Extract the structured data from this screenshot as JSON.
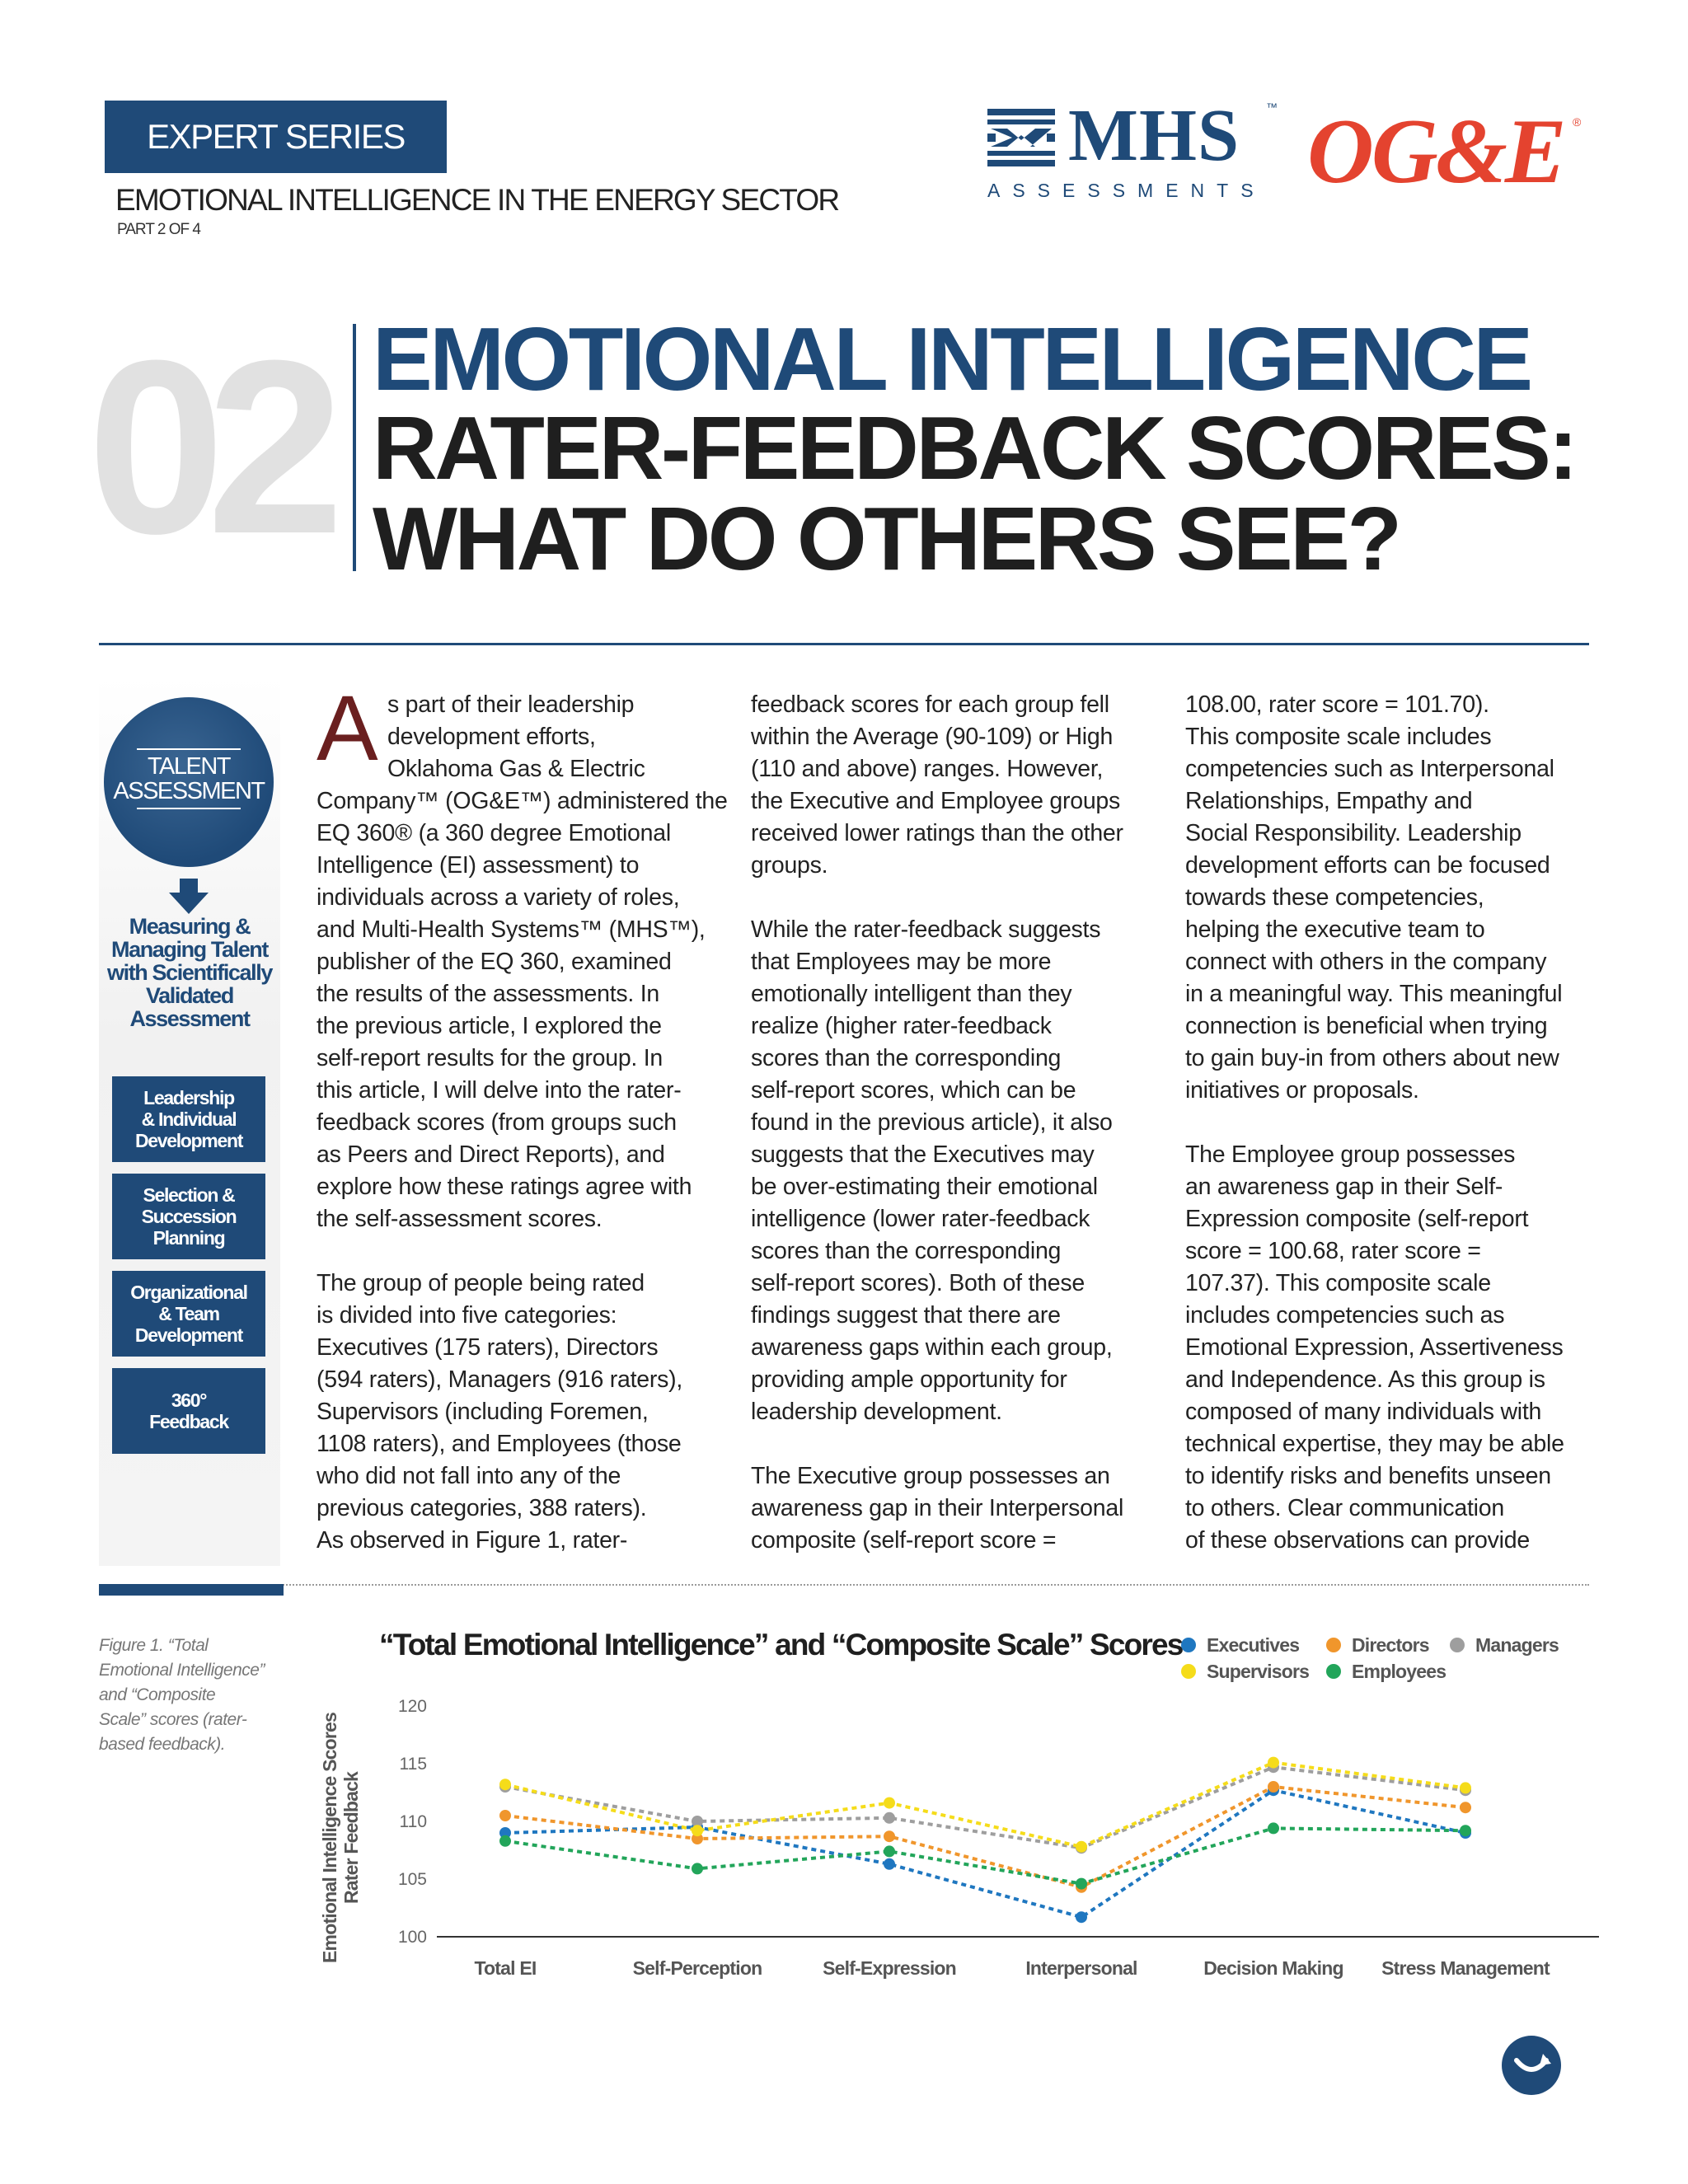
{
  "header": {
    "series_badge": "EXPERT SERIES",
    "series_subtitle": "EMOTIONAL INTELLIGENCE IN THE ENERGY SECTOR",
    "series_part": "PART 2 OF 4",
    "logo_mhs_word": "MHS",
    "logo_mhs_tm": "™",
    "logo_mhs_subtitle": "ASSESSMENTS",
    "logo_oge": "OG&E",
    "logo_oge_reg": "®"
  },
  "title": {
    "number": "02",
    "line1": "EMOTIONAL INTELLIGENCE",
    "line2": "RATER-FEEDBACK SCORES:",
    "line3": "WHAT DO OTHERS SEE?"
  },
  "sidebar": {
    "badge_line1": "TALENT",
    "badge_line2": "ASSESSMENT",
    "arrow_icon": "down-arrow-icon",
    "measure_lines": [
      "Measuring &",
      "Managing Talent",
      "with Scientifically",
      "Validated",
      "Assessment"
    ],
    "boxes": [
      {
        "lines": [
          "Leadership",
          "& Individual",
          "Development"
        ]
      },
      {
        "lines": [
          "Selection &",
          "Succession",
          "Planning"
        ]
      },
      {
        "lines": [
          "Organizational",
          "& Team",
          "Development"
        ]
      },
      {
        "lines": [
          "360°",
          "Feedback"
        ]
      }
    ]
  },
  "article": {
    "dropcap": "A",
    "col1": [
      "s part of their leadership",
      "development efforts,",
      "Oklahoma Gas & Electric",
      "Company™ (OG&E™) administered the",
      "EQ 360® (a 360 degree Emotional",
      "Intelligence (EI) assessment) to",
      "individuals across a variety of roles,",
      "and Multi-Health Systems™ (MHS™),",
      "publisher of the EQ 360, examined",
      "the results of the assessments. In",
      "the previous article, I explored the",
      "self-report results for the group. In",
      "this article, I will delve into the rater-",
      "feedback scores (from groups such",
      "as Peers and Direct Reports), and",
      "explore how these ratings agree with",
      "the self-assessment scores.",
      "",
      "The group of people being rated",
      "is divided into five categories:",
      "Executives (175 raters), Directors",
      "(594 raters), Managers (916 raters),",
      "Supervisors (including Foremen,",
      "1108 raters), and Employees (those",
      "who did not fall into any of the",
      "previous categories, 388 raters).",
      "As observed in Figure 1, rater-"
    ],
    "col2": [
      "feedback scores for each group fell",
      "within the Average (90-109) or High",
      "(110 and above) ranges. However,",
      "the Executive and Employee groups",
      "received lower ratings than the other",
      "groups.",
      "",
      "While the rater-feedback suggests",
      "that Employees may be more",
      "emotionally intelligent than they",
      "realize (higher rater-feedback",
      "scores than the corresponding",
      "self-report scores, which can be",
      "found in the previous article), it also",
      "suggests that the Executives may",
      "be over-estimating their emotional",
      "intelligence (lower rater-feedback",
      "scores than the corresponding",
      "self-report scores). Both of these",
      "findings suggest that there are",
      "awareness gaps within each group,",
      "providing ample opportunity for",
      "leadership development.",
      "",
      "The Executive group possesses an",
      "awareness gap in their Interpersonal",
      "composite (self-report score ="
    ],
    "col3": [
      "108.00, rater score = 101.70).",
      "This composite scale includes",
      "competencies such as Interpersonal",
      "Relationships, Empathy and",
      "Social Responsibility. Leadership",
      "development efforts can be focused",
      "towards these competencies,",
      "helping the executive team to",
      "connect with others in the company",
      "in a meaningful way. This meaningful",
      "connection is beneficial when trying",
      "to gain buy-in from others about new",
      "initiatives or proposals.",
      "",
      "The Employee group possesses",
      "an awareness gap in their Self-",
      "Expression composite (self-report",
      "score = 100.68, rater score =",
      "107.37). This composite scale",
      "includes competencies such as",
      "Emotional Expression, Assertiveness",
      "and Independence. As this group is",
      "composed of many individuals with",
      "technical expertise, they may be able",
      "to identify risks and benefits unseen",
      "to others. Clear communication",
      "of these observations can provide"
    ]
  },
  "figure": {
    "caption_lines": [
      "Figure 1. “Total",
      "Emotional Intelligence”",
      "and “Composite",
      "Scale” scores (rater-",
      "based feedback)."
    ]
  },
  "chart_data": {
    "type": "line",
    "title": "“Total Emotional Intelligence” and “Composite Scale” Scores",
    "ylabel_lines": [
      "Emotional Intelligence Scores",
      "Rater Feedback"
    ],
    "xlabel": "",
    "categories": [
      "Total EI",
      "Self-Perception",
      "Self-Expression",
      "Interpersonal",
      "Decision Making",
      "Stress Management"
    ],
    "ylim": [
      100,
      120
    ],
    "yticks": [
      "100",
      "105",
      "110",
      "115",
      "120"
    ],
    "grid": false,
    "legend_placement": "top-right",
    "series": [
      {
        "name": "Executives",
        "color": "#1f77c0",
        "values": [
          109.0,
          109.5,
          106.3,
          101.7,
          112.7,
          109.0
        ]
      },
      {
        "name": "Directors",
        "color": "#f0962c",
        "values": [
          110.5,
          108.5,
          108.7,
          104.3,
          113.0,
          111.2
        ]
      },
      {
        "name": "Managers",
        "color": "#9e9e9e",
        "values": [
          113.0,
          110.0,
          110.3,
          107.7,
          114.7,
          112.7
        ]
      },
      {
        "name": "Supervisors",
        "color": "#f5dc1a",
        "values": [
          113.2,
          109.2,
          111.6,
          107.8,
          115.1,
          112.9
        ]
      },
      {
        "name": "Employees",
        "color": "#22a55a",
        "values": [
          108.3,
          105.9,
          107.4,
          104.6,
          109.4,
          109.2
        ]
      }
    ]
  },
  "footer": {
    "nav_icon": "page-turn-arrow-icon"
  }
}
